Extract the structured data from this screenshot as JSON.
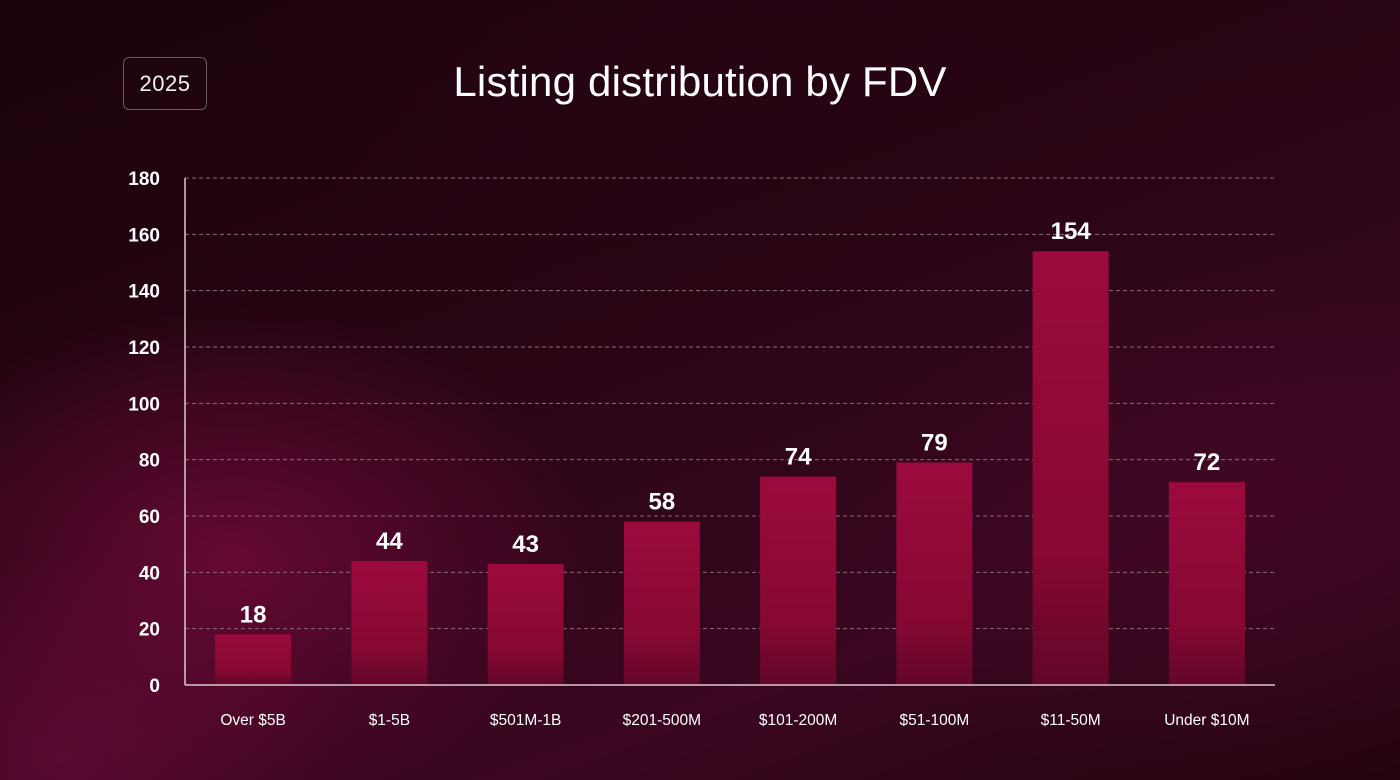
{
  "badge": {
    "year": "2025"
  },
  "chart_data": {
    "type": "bar",
    "title": "Listing distribution by FDV",
    "xlabel": "",
    "ylabel": "",
    "categories": [
      "Over $5B",
      "$1-5B",
      "$501M-1B",
      "$201-500M",
      "$101-200M",
      "$51-100M",
      "$11-50M",
      "Under $10M"
    ],
    "values": [
      18,
      44,
      43,
      58,
      74,
      79,
      154,
      72
    ],
    "ylim": [
      0,
      180
    ],
    "yticks": [
      0,
      20,
      40,
      60,
      80,
      100,
      120,
      140,
      160,
      180
    ],
    "grid": true,
    "data_labels": true,
    "colors": {
      "bar_top": "#9a0a3c",
      "bar_bottom": "#6a0628",
      "grid": "#8a6a78",
      "axis": "#d9c9cf"
    }
  }
}
